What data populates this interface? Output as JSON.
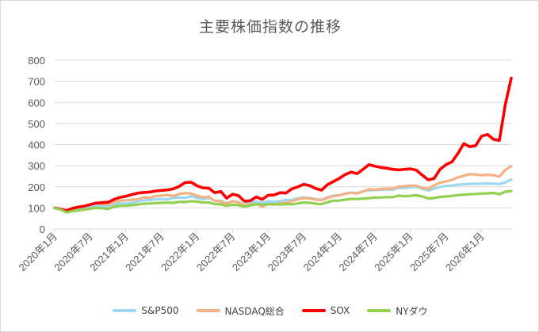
{
  "chart_data": {
    "type": "line",
    "title": "主要株価指数の推移",
    "xlabel": "",
    "ylabel": "",
    "ylim": [
      0,
      800
    ],
    "yticks": [
      0,
      100,
      200,
      300,
      400,
      500,
      600,
      700,
      800
    ],
    "grid": true,
    "legend": "bottom",
    "x": [
      "2020年1月",
      "2020年2月",
      "2020年3月",
      "2020年4月",
      "2020年5月",
      "2020年6月",
      "2020年7月",
      "2020年8月",
      "2020年9月",
      "2020年10月",
      "2020年11月",
      "2020年12月",
      "2021年1月",
      "2021年2月",
      "2021年3月",
      "2021年4月",
      "2021年5月",
      "2021年6月",
      "2021年7月",
      "2021年8月",
      "2021年9月",
      "2021年10月",
      "2021年11月",
      "2021年12月",
      "2022年1月",
      "2022年2月",
      "2022年3月",
      "2022年4月",
      "2022年5月",
      "2022年6月",
      "2022年7月",
      "2022年8月",
      "2022年9月",
      "2022年10月",
      "2022年11月",
      "2022年12月",
      "2023年1月",
      "2023年2月",
      "2023年3月",
      "2023年4月",
      "2023年5月",
      "2023年6月",
      "2023年7月",
      "2023年8月",
      "2023年9月",
      "2023年10月",
      "2023年11月",
      "2023年12月",
      "2024年1月",
      "2024年2月",
      "2024年3月",
      "2024年4月",
      "2024年5月",
      "2024年6月",
      "2024年7月",
      "2024年8月",
      "2024年9月",
      "2024年10月",
      "2024年11月",
      "2024年12月",
      "2025年1月",
      "2025年2月",
      "2025年3月",
      "2025年4月",
      "2025年5月",
      "2025年6月",
      "2025年7月",
      "2025年8月",
      "2025年9月",
      "2025年10月",
      "2025年11月",
      "2025年12月",
      "2026年1月",
      "2026年2月",
      "2026年3月",
      "2026年4月",
      "2026年5月",
      "2026年6月"
    ],
    "xtick_labels": [
      "2020年1月",
      "2020年7月",
      "2021年1月",
      "2021年7月",
      "2022年1月",
      "2022年7月",
      "2023年1月",
      "2023年7月",
      "2024年1月",
      "2024年7月",
      "2025年1月",
      "2025年7月",
      "2026年1月"
    ],
    "series": [
      {
        "name": "S&P500",
        "color": "#9dd8f3",
        "values": [
          100,
          92,
          80,
          90,
          95,
          100,
          106,
          113,
          109,
          106,
          117,
          121,
          121,
          124,
          130,
          136,
          137,
          140,
          142,
          140,
          147,
          150,
          148,
          155,
          147,
          142,
          147,
          134,
          134,
          122,
          132,
          127,
          115,
          125,
          131,
          124,
          131,
          129,
          133,
          138,
          138,
          145,
          150,
          147,
          142,
          138,
          151,
          158,
          160,
          167,
          172,
          170,
          178,
          183,
          184,
          186,
          188,
          186,
          195,
          193,
          198,
          200,
          190,
          182,
          191,
          200,
          204,
          206,
          210,
          212,
          214,
          214,
          215,
          216,
          215,
          213,
          220,
          235
        ]
      },
      {
        "name": "NASDAQ総合",
        "color": "#f4b183",
        "values": [
          100,
          95,
          84,
          95,
          102,
          108,
          115,
          123,
          119,
          116,
          127,
          134,
          136,
          139,
          141,
          150,
          148,
          156,
          158,
          161,
          156,
          166,
          170,
          168,
          158,
          150,
          153,
          133,
          131,
          120,
          131,
          127,
          113,
          116,
          119,
          106,
          117,
          116,
          123,
          124,
          132,
          140,
          147,
          145,
          139,
          136,
          148,
          155,
          160,
          168,
          172,
          168,
          178,
          189,
          186,
          190,
          191,
          191,
          201,
          203,
          206,
          205,
          195,
          190,
          207,
          220,
          225,
          233,
          245,
          252,
          260,
          258,
          255,
          257,
          255,
          248,
          280,
          298
        ]
      },
      {
        "name": "SOX",
        "color": "#ff0000",
        "values": [
          100,
          94,
          87,
          98,
          104,
          108,
          116,
          123,
          125,
          127,
          140,
          150,
          155,
          163,
          170,
          173,
          175,
          180,
          183,
          185,
          190,
          202,
          220,
          222,
          205,
          195,
          193,
          172,
          178,
          146,
          165,
          158,
          132,
          134,
          152,
          140,
          160,
          161,
          172,
          170,
          190,
          200,
          212,
          206,
          192,
          184,
          210,
          225,
          240,
          258,
          270,
          262,
          283,
          305,
          298,
          292,
          288,
          283,
          280,
          283,
          285,
          279,
          255,
          233,
          240,
          283,
          305,
          318,
          358,
          405,
          390,
          395,
          440,
          448,
          425,
          420,
          590,
          715
        ]
      },
      {
        "name": "NYダウ",
        "color": "#92d050",
        "values": [
          100,
          92,
          78,
          85,
          88,
          92,
          96,
          100,
          98,
          95,
          105,
          110,
          110,
          113,
          116,
          120,
          121,
          123,
          124,
          125,
          124,
          129,
          128,
          132,
          130,
          126,
          126,
          118,
          117,
          110,
          115,
          113,
          106,
          112,
          117,
          115,
          118,
          117,
          116,
          118,
          117,
          121,
          126,
          124,
          120,
          118,
          127,
          134,
          135,
          139,
          143,
          142,
          144,
          146,
          149,
          149,
          151,
          151,
          158,
          155,
          157,
          160,
          154,
          145,
          147,
          152,
          154,
          157,
          160,
          163,
          165,
          166,
          168,
          169,
          171,
          165,
          177,
          180
        ]
      }
    ]
  }
}
